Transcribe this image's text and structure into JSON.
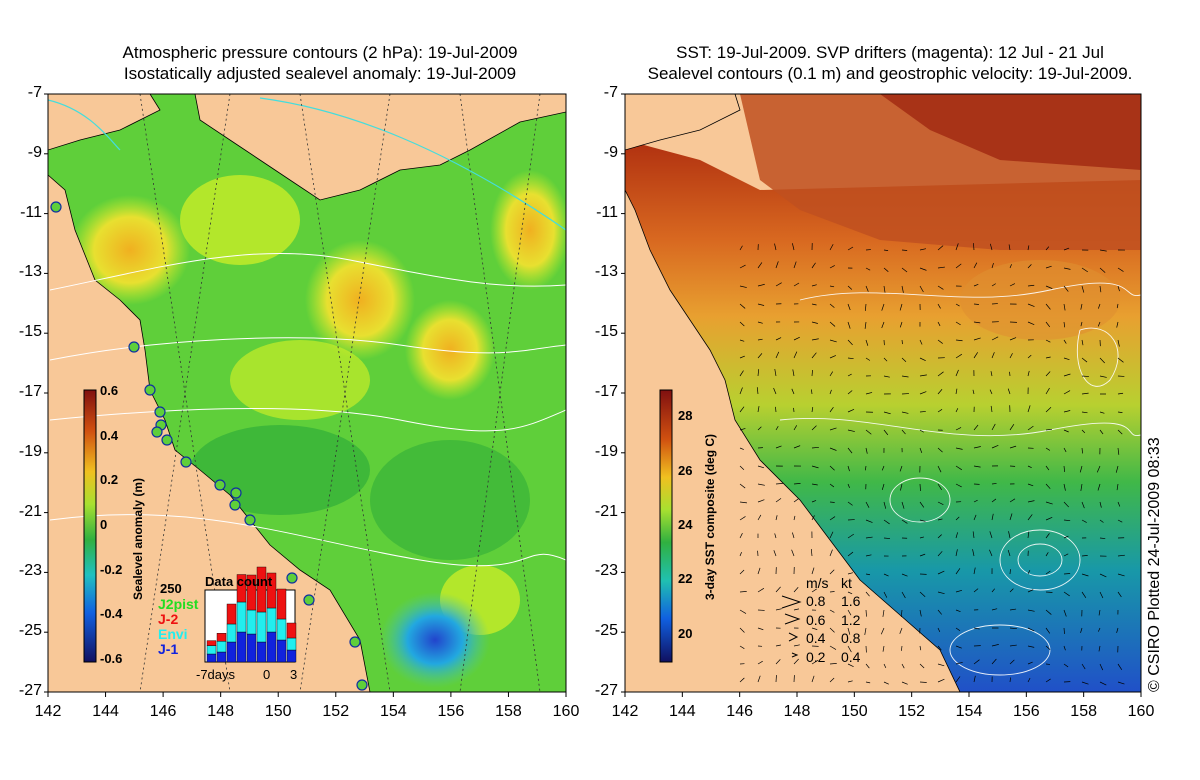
{
  "left_map": {
    "title_line1": "Atmospheric pressure contours (2 hPa): 19-Jul-2009",
    "title_line2": "Isostatically adjusted sealevel anomaly: 19-Jul-2009",
    "colorbar": {
      "label": "Sealevel anomaly (m)",
      "ticks": [
        "0.6",
        "0.4",
        "0.2",
        "0",
        "-0.2",
        "-0.4",
        "-0.6"
      ],
      "range": [
        -0.6,
        0.6
      ]
    },
    "histogram": {
      "title": "Data count",
      "ymax_label": "250",
      "xlabels": [
        "-7days",
        "0",
        "3"
      ],
      "legend": [
        {
          "label": "J2pist",
          "color": "#22dd22"
        },
        {
          "label": "J-2",
          "color": "#ee1111"
        },
        {
          "label": "Envi",
          "color": "#22eeee"
        },
        {
          "label": "J-1",
          "color": "#1122dd"
        }
      ]
    }
  },
  "right_map": {
    "title_line1": "SST: 19-Jul-2009. SVP drifters (magenta): 12 Jul - 21 Jul",
    "title_line2": "Sealevel contours (0.1 m) and geostrophic velocity: 19-Jul-2009.",
    "colorbar": {
      "label": "3-day SST composite (deg C)",
      "ticks": [
        "28",
        "26",
        "24",
        "22",
        "20"
      ],
      "range": [
        19,
        29
      ]
    },
    "speed_legend": {
      "header_ms": "m/s",
      "header_kt": "kt",
      "rows": [
        {
          "ms": "0.8",
          "kt": "1.6"
        },
        {
          "ms": "0.6",
          "kt": "1.2"
        },
        {
          "ms": "0.4",
          "kt": "0.8"
        },
        {
          "ms": "0.2",
          "kt": "0.4"
        }
      ]
    }
  },
  "axes": {
    "lat_ticks": [
      "-7",
      "-9",
      "-11",
      "-13",
      "-15",
      "-17",
      "-19",
      "-21",
      "-23",
      "-25",
      "-27"
    ],
    "lon_ticks": [
      "142",
      "144",
      "146",
      "148",
      "150",
      "152",
      "154",
      "156",
      "158",
      "160"
    ]
  },
  "credit": "© CSIRO Plotted 24-Jul-2009 08:33",
  "colors": {
    "land": "#f8c898",
    "sea_green": "#5fcf3a",
    "warm": "#c8501e"
  }
}
